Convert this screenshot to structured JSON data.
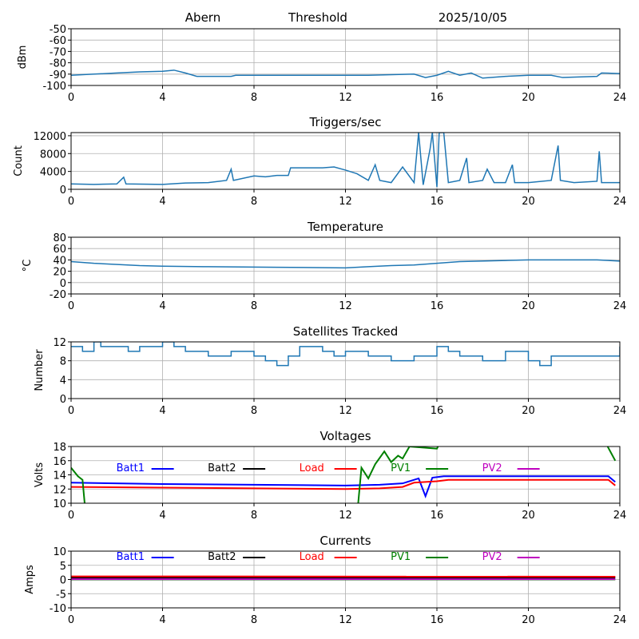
{
  "header": {
    "station": "Abern",
    "metric": "Threshold",
    "date": "2025/10/05"
  },
  "chart_data": [
    {
      "type": "line",
      "title": "",
      "ylabel": "dBm",
      "xlim": [
        0,
        24
      ],
      "ylim": [
        -100,
        -50
      ],
      "xticks": [
        0,
        4,
        8,
        12,
        16,
        20,
        24
      ],
      "yticks": [
        -100,
        -90,
        -80,
        -70,
        -60,
        -50
      ],
      "grid": true,
      "series": [
        {
          "color": "#1f77b4",
          "points": [
            [
              0,
              -91
            ],
            [
              1,
              -90
            ],
            [
              2,
              -89
            ],
            [
              3,
              -88
            ],
            [
              4,
              -87.5
            ],
            [
              4.5,
              -86.5
            ],
            [
              5,
              -89
            ],
            [
              5.5,
              -92
            ],
            [
              7,
              -92
            ],
            [
              7.2,
              -91
            ],
            [
              13,
              -91
            ],
            [
              14,
              -90.5
            ],
            [
              15,
              -90
            ],
            [
              15.5,
              -93
            ],
            [
              16,
              -91
            ],
            [
              16.5,
              -87.5
            ],
            [
              17,
              -91
            ],
            [
              17.5,
              -89
            ],
            [
              18,
              -93.5
            ],
            [
              19,
              -92
            ],
            [
              20,
              -91
            ],
            [
              21,
              -91
            ],
            [
              21.5,
              -93
            ],
            [
              23,
              -92
            ],
            [
              23.2,
              -89
            ],
            [
              24,
              -89.5
            ]
          ]
        }
      ]
    },
    {
      "type": "line",
      "title": "Triggers/sec",
      "ylabel": "Count",
      "xlim": [
        0,
        24
      ],
      "ylim": [
        0,
        12700
      ],
      "xticks": [
        0,
        4,
        8,
        12,
        16,
        20,
        24
      ],
      "yticks": [
        0,
        4000,
        8000,
        12000
      ],
      "grid": true,
      "series": [
        {
          "color": "#1f77b4",
          "points": [
            [
              0,
              1200
            ],
            [
              1,
              1100
            ],
            [
              2,
              1200
            ],
            [
              2.3,
              2700
            ],
            [
              2.4,
              1200
            ],
            [
              4,
              1100
            ],
            [
              5,
              1400
            ],
            [
              6,
              1500
            ],
            [
              6.8,
              2000
            ],
            [
              7,
              4500
            ],
            [
              7.1,
              2000
            ],
            [
              8,
              3000
            ],
            [
              8.5,
              2800
            ],
            [
              9,
              3100
            ],
            [
              9.5,
              3100
            ],
            [
              9.6,
              4800
            ],
            [
              11,
              4800
            ],
            [
              11.5,
              5000
            ],
            [
              12,
              4300
            ],
            [
              12.5,
              3500
            ],
            [
              13,
              2000
            ],
            [
              13.3,
              5500
            ],
            [
              13.5,
              2000
            ],
            [
              14,
              1500
            ],
            [
              14.5,
              5000
            ],
            [
              15,
              1500
            ],
            [
              15.2,
              12700
            ],
            [
              15.4,
              1000
            ],
            [
              15.7,
              9000
            ],
            [
              15.8,
              12700
            ],
            [
              16,
              500
            ],
            [
              16.1,
              12700
            ],
            [
              16.3,
              12700
            ],
            [
              16.5,
              1500
            ],
            [
              17,
              2000
            ],
            [
              17.3,
              7000
            ],
            [
              17.4,
              1500
            ],
            [
              18,
              2000
            ],
            [
              18.2,
              4500
            ],
            [
              18.5,
              1500
            ],
            [
              19,
              1500
            ],
            [
              19.3,
              5500
            ],
            [
              19.4,
              1500
            ],
            [
              20,
              1500
            ],
            [
              21,
              2000
            ],
            [
              21.3,
              9800
            ],
            [
              21.4,
              2000
            ],
            [
              22,
              1500
            ],
            [
              23,
              1800
            ],
            [
              23.1,
              8500
            ],
            [
              23.2,
              1500
            ],
            [
              24,
              1500
            ]
          ]
        }
      ]
    },
    {
      "type": "line",
      "title": "Temperature",
      "ylabel": "°C",
      "xlim": [
        0,
        24
      ],
      "ylim": [
        -20,
        80
      ],
      "xticks": [
        0,
        4,
        8,
        12,
        16,
        20,
        24
      ],
      "yticks": [
        -20,
        0,
        20,
        40,
        60,
        80
      ],
      "grid": true,
      "series": [
        {
          "color": "#1f77b4",
          "points": [
            [
              0,
              37
            ],
            [
              1,
              34
            ],
            [
              3,
              30
            ],
            [
              4,
              29
            ],
            [
              6,
              28
            ],
            [
              9,
              27
            ],
            [
              12,
              26
            ],
            [
              13,
              28
            ],
            [
              14,
              30
            ],
            [
              15,
              31
            ],
            [
              16,
              34
            ],
            [
              17,
              37
            ],
            [
              19,
              39
            ],
            [
              20,
              40
            ],
            [
              23,
              40
            ],
            [
              24,
              38
            ]
          ]
        }
      ]
    },
    {
      "type": "line",
      "title": "Satellites Tracked",
      "ylabel": "Number",
      "xlim": [
        0,
        24
      ],
      "ylim": [
        0,
        12
      ],
      "xticks": [
        0,
        4,
        8,
        12,
        16,
        20,
        24
      ],
      "yticks": [
        0,
        4,
        8,
        12
      ],
      "grid": true,
      "step": true,
      "series": [
        {
          "color": "#1f77b4",
          "points": [
            [
              0,
              11
            ],
            [
              0.5,
              10
            ],
            [
              1,
              12
            ],
            [
              1.3,
              11
            ],
            [
              2.5,
              10
            ],
            [
              3,
              11
            ],
            [
              4,
              12
            ],
            [
              4.5,
              11
            ],
            [
              5,
              10
            ],
            [
              6,
              9
            ],
            [
              7,
              10
            ],
            [
              8,
              9
            ],
            [
              8.5,
              8
            ],
            [
              9,
              7
            ],
            [
              9.5,
              9
            ],
            [
              10,
              11
            ],
            [
              11,
              10
            ],
            [
              11.5,
              9
            ],
            [
              12,
              10
            ],
            [
              13,
              9
            ],
            [
              14,
              8
            ],
            [
              15,
              9
            ],
            [
              16,
              11
            ],
            [
              16.5,
              10
            ],
            [
              17,
              9
            ],
            [
              18,
              8
            ],
            [
              19,
              10
            ],
            [
              20,
              8
            ],
            [
              20.5,
              7
            ],
            [
              21,
              9
            ],
            [
              23,
              9
            ],
            [
              24,
              11
            ]
          ]
        }
      ]
    },
    {
      "type": "line",
      "title": "Voltages",
      "ylabel": "Volts",
      "xlim": [
        0,
        24
      ],
      "ylim": [
        10,
        18
      ],
      "xticks": [
        0,
        4,
        8,
        12,
        16,
        20,
        24
      ],
      "yticks": [
        10,
        12,
        14,
        16,
        18
      ],
      "grid": true,
      "legend": "top",
      "legend_positions": [
        1,
        5,
        9,
        13,
        17
      ],
      "series": [
        {
          "name": "Batt1",
          "color": "#0000ff",
          "points": [
            [
              0,
              12.9
            ],
            [
              4,
              12.7
            ],
            [
              8,
              12.6
            ],
            [
              12,
              12.5
            ],
            [
              13.5,
              12.6
            ],
            [
              14.5,
              12.8
            ],
            [
              15.2,
              13.5
            ],
            [
              15.5,
              11
            ],
            [
              15.8,
              13.6
            ],
            [
              16.3,
              13.8
            ],
            [
              23.5,
              13.8
            ],
            [
              23.8,
              13
            ]
          ]
        },
        {
          "name": "Batt2",
          "color": "#000000",
          "points": []
        },
        {
          "name": "Load",
          "color": "#ff0000",
          "points": [
            [
              0,
              12.3
            ],
            [
              4,
              12.2
            ],
            [
              8,
              12.1
            ],
            [
              12,
              12
            ],
            [
              13.5,
              12.1
            ],
            [
              14.5,
              12.3
            ],
            [
              15,
              12.9
            ],
            [
              16,
              13.1
            ],
            [
              16.5,
              13.3
            ],
            [
              23.5,
              13.3
            ],
            [
              23.8,
              12.5
            ]
          ]
        },
        {
          "name": "PV1",
          "color": "#008000",
          "points": [
            [
              0,
              15
            ],
            [
              0.3,
              13.8
            ],
            [
              0.5,
              13.3
            ],
            [
              0.65,
              8
            ],
            [
              12.5,
              8
            ],
            [
              12.7,
              15
            ],
            [
              13,
              13.5
            ],
            [
              13.3,
              15.5
            ],
            [
              13.7,
              17.3
            ],
            [
              14,
              15.8
            ],
            [
              14.3,
              16.7
            ],
            [
              14.5,
              16.3
            ],
            [
              14.8,
              18
            ],
            [
              16,
              17.7
            ],
            [
              16.2,
              19
            ],
            [
              23.3,
              19
            ],
            [
              23.8,
              16
            ]
          ]
        },
        {
          "name": "PV2",
          "color": "#bf00bf",
          "points": []
        }
      ]
    },
    {
      "type": "line",
      "title": "Currents",
      "ylabel": "Amps",
      "xlim": [
        0,
        24
      ],
      "ylim": [
        -10,
        10
      ],
      "xticks": [
        0,
        4,
        8,
        12,
        16,
        20,
        24
      ],
      "yticks": [
        -10,
        -5,
        0,
        5,
        10
      ],
      "grid": true,
      "legend": "top",
      "legend_positions": [
        1,
        5,
        9,
        13,
        17
      ],
      "series": [
        {
          "name": "Batt1",
          "color": "#0000ff",
          "points": [
            [
              0,
              0.8
            ],
            [
              23.8,
              0.8
            ]
          ]
        },
        {
          "name": "Batt2",
          "color": "#000000",
          "points": [
            [
              0,
              0.6
            ],
            [
              23.8,
              0.6
            ]
          ]
        },
        {
          "name": "Load",
          "color": "#ff0000",
          "points": [
            [
              0,
              1.1
            ],
            [
              23.8,
              1.0
            ]
          ]
        },
        {
          "name": "PV1",
          "color": "#008000",
          "points": [
            [
              0,
              0
            ],
            [
              23.8,
              0
            ]
          ]
        },
        {
          "name": "PV2",
          "color": "#bf00bf",
          "points": [
            [
              0,
              0.1
            ],
            [
              23.8,
              0.1
            ]
          ]
        }
      ]
    }
  ]
}
